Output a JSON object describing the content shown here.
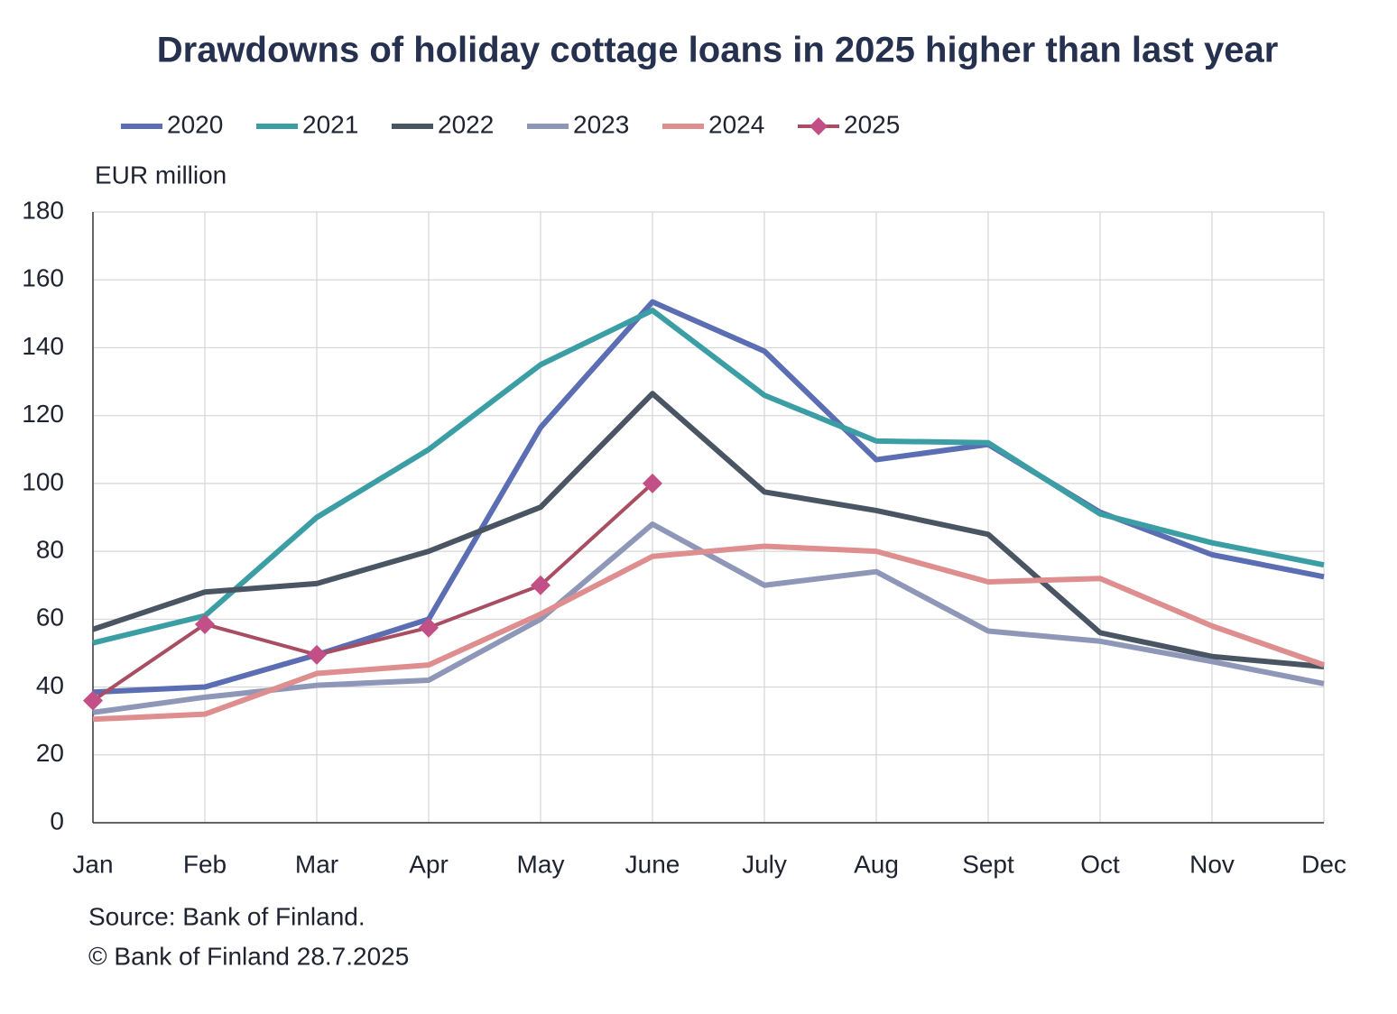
{
  "chart_data": {
    "type": "line",
    "title": "Drawdowns of holiday cottage loans in 2025 higher than last year",
    "y_axis_label": "EUR million",
    "source": "Source: Bank of Finland.",
    "copyright": "© Bank of Finland 28.7.2025",
    "categories": [
      "Jan",
      "Feb",
      "Mar",
      "Apr",
      "May",
      "June",
      "July",
      "Aug",
      "Sept",
      "Oct",
      "Nov",
      "Dec"
    ],
    "series": [
      {
        "name": "2020",
        "color": "#5b6db3",
        "values": [
          38.5,
          40,
          49.5,
          60,
          116.5,
          153.5,
          139,
          107,
          111.5,
          91.5,
          79,
          72.5
        ]
      },
      {
        "name": "2021",
        "color": "#3c9ea5",
        "values": [
          53,
          61,
          90,
          110,
          135,
          151,
          126,
          112.5,
          112,
          91,
          82.5,
          76
        ]
      },
      {
        "name": "2022",
        "color": "#4a5563",
        "values": [
          57,
          68,
          70.5,
          80,
          93,
          126.5,
          97.5,
          92,
          85,
          56,
          49,
          46
        ]
      },
      {
        "name": "2023",
        "color": "#8e97b8",
        "values": [
          32.5,
          37,
          40.5,
          42,
          60,
          88,
          70,
          74,
          56.5,
          53.5,
          47.5,
          41
        ]
      },
      {
        "name": "2024",
        "color": "#de8e8e",
        "values": [
          30.5,
          32,
          44,
          46.5,
          61.5,
          78.5,
          81.5,
          80,
          71,
          72,
          58,
          46.5
        ]
      },
      {
        "name": "2025",
        "color": "#a84d62",
        "marker": "diamond",
        "marker_color": "#c24f85",
        "values": [
          36,
          58.5,
          49.5,
          57.5,
          70,
          100,
          null,
          null,
          null,
          null,
          null,
          null
        ]
      }
    ],
    "ylim": [
      0,
      180
    ],
    "yticks": [
      0,
      20,
      40,
      60,
      80,
      100,
      120,
      140,
      160,
      180
    ],
    "grid": true,
    "legend": "top"
  }
}
